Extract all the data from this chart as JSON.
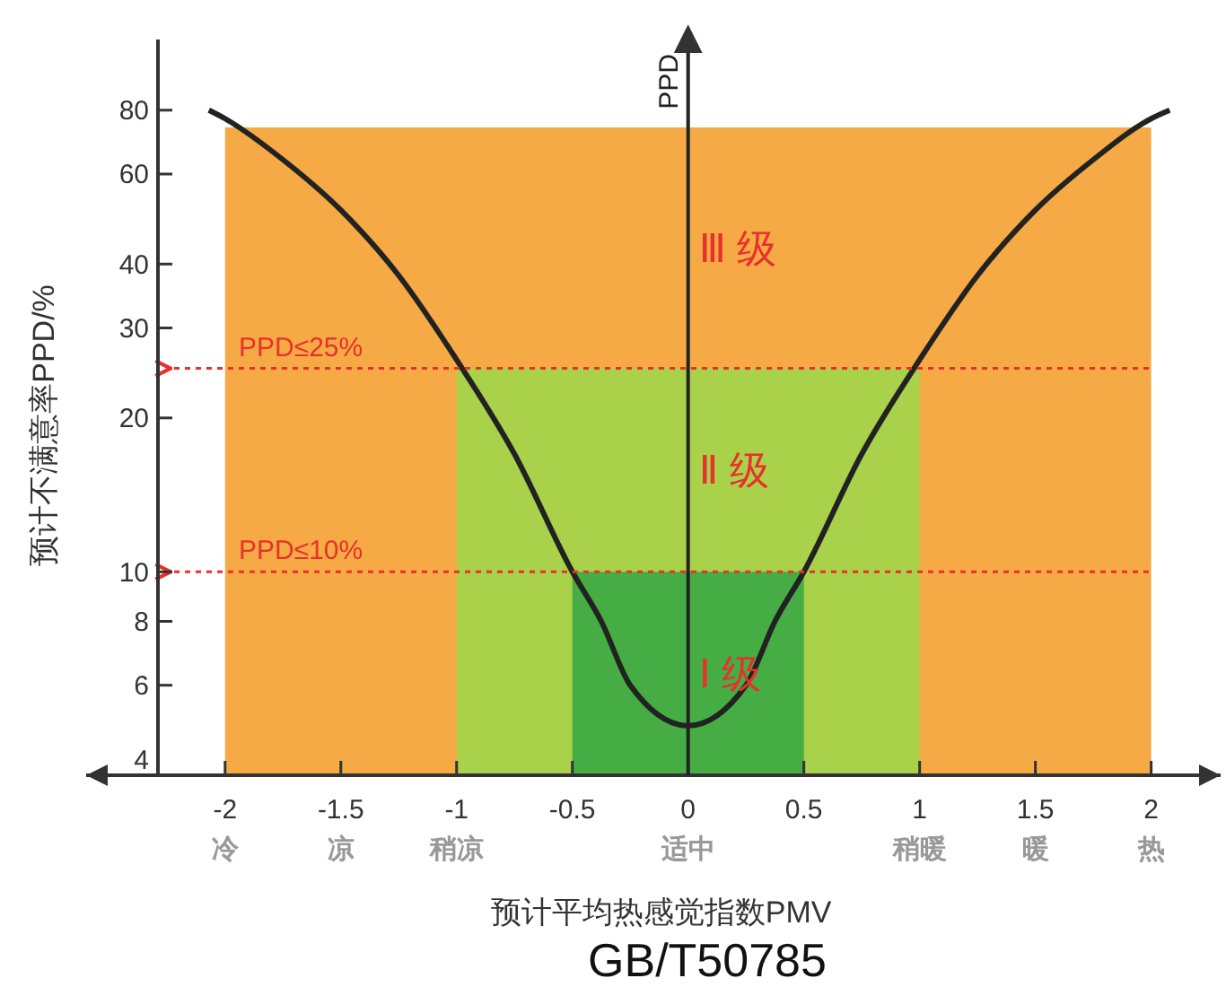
{
  "chart_data": {
    "type": "line",
    "xlabel": "预计平均热感觉指数PMV",
    "ylabel": "预计不满意率PPD/%",
    "log": "y",
    "xlim": [
      -2.6,
      2.3
    ],
    "ylim": [
      4,
      110
    ],
    "xticks": [
      {
        "value": -2,
        "label": "-2\n冷"
      },
      {
        "value": -1.5,
        "label": "-1.5\n凉"
      },
      {
        "value": -1,
        "label": "-1\n稍凉"
      },
      -0.5,
      {
        "value": 0,
        "label": "0\n适中"
      },
      0.5,
      {
        "value": 1,
        "label": "1\n稍暖"
      },
      {
        "value": 1.5,
        "label": "1.5\n暖"
      },
      {
        "value": 2,
        "label": "2\n热"
      }
    ],
    "yticks": [
      4,
      6,
      8,
      10,
      20,
      30,
      40,
      60,
      80
    ],
    "grid": false,
    "series": [
      {
        "type": "area",
        "color": "#f5aa45",
        "x": [
          -2,
          2
        ],
        "values": [
          74,
          74
        ]
      },
      {
        "type": "area",
        "color": "#aad14a",
        "x": [
          -1,
          1
        ],
        "values": [
          25,
          25
        ]
      },
      {
        "type": "area",
        "color": "#45ad44",
        "x": [
          -0.5,
          0.5
        ],
        "values": [
          10,
          10
        ]
      },
      {
        "color": "#222222",
        "x": [
          -2.07,
          -2,
          -1.75,
          -1.5,
          -1.25,
          -1,
          -0.75,
          -0.5,
          -0.375,
          -0.25,
          0,
          0.25,
          0.375,
          0.5,
          0.75,
          1,
          1.25,
          1.5,
          1.75,
          2,
          2.08
        ],
        "values": [
          80,
          77,
          64,
          51,
          38,
          26,
          17,
          10,
          8,
          6,
          5,
          6,
          8,
          10,
          17,
          26,
          38,
          51,
          64,
          77,
          80
        ]
      }
    ],
    "ref_lines": [
      {
        "axis": "y",
        "value": 25,
        "label": "PPD≤25%",
        "color": "#e8302c",
        "line_style": "dotted"
      },
      {
        "axis": "y",
        "value": 10,
        "label": "PPD≤10%",
        "color": "#e8302c",
        "line_style": "dotted"
      }
    ],
    "annotations": [
      "PPD",
      "GB/T50785",
      "Ⅲ 级",
      "Ⅱ 级",
      "Ⅰ 级"
    ]
  }
}
